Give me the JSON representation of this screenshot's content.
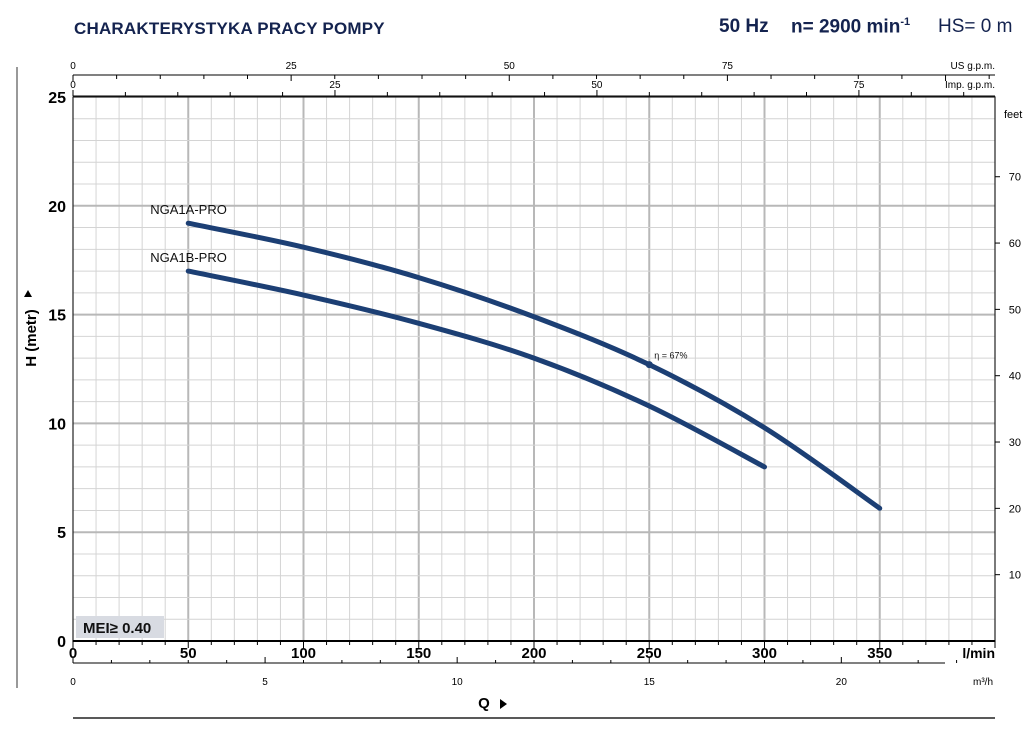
{
  "header": {
    "title": "CHARAKTERYSTYKA PRACY POMPY",
    "freq": "50 Hz",
    "speed_prefix": "n= 2900 min",
    "speed_sup": "-1",
    "hs": "HS= 0 m"
  },
  "axes": {
    "us_unit": "US g.p.m.",
    "imp_unit": "Imp. g.p.m.",
    "feet_unit": "feet",
    "lmin_unit": "l/min",
    "m3h_unit": "m³/h",
    "y_label": "H  (metr)",
    "x_label": "Q"
  },
  "badge": {
    "text": "MEI≥ 0.40"
  },
  "chart_data": {
    "type": "line",
    "title": "CHARAKTERYSTYKA PRACY POMPY",
    "xlabel": "Q",
    "ylabel": "H (metr)",
    "xlim": [
      0,
      400
    ],
    "ylim": [
      0,
      25
    ],
    "x_unit": "l/min",
    "x_ticks": [
      0,
      50,
      100,
      150,
      200,
      250,
      300,
      350
    ],
    "y_ticks": [
      0,
      5,
      10,
      15,
      20,
      25
    ],
    "secondary_axes": {
      "m3h_ticks": [
        0,
        5,
        10,
        15,
        20
      ],
      "us_gpm_ticks": [
        0,
        25,
        50,
        75
      ],
      "imp_gpm_ticks": [
        0,
        25,
        50,
        75
      ],
      "feet_ticks": [
        10,
        20,
        30,
        40,
        50,
        60,
        70
      ]
    },
    "grid": true,
    "series": [
      {
        "name": "NGA1A-PRO",
        "color": "#1c3f74",
        "x": [
          50,
          100,
          150,
          200,
          250,
          300,
          350
        ],
        "y": [
          19.2,
          18.1,
          16.7,
          14.9,
          12.7,
          9.8,
          6.1
        ]
      },
      {
        "name": "NGA1B-PRO",
        "color": "#1c3f74",
        "x": [
          50,
          100,
          150,
          200,
          250,
          300
        ],
        "y": [
          17.0,
          15.9,
          14.6,
          13.0,
          10.8,
          8.0
        ]
      }
    ],
    "annotations": [
      {
        "text": "η = 67%",
        "x": 250,
        "y": 12.7
      }
    ]
  }
}
